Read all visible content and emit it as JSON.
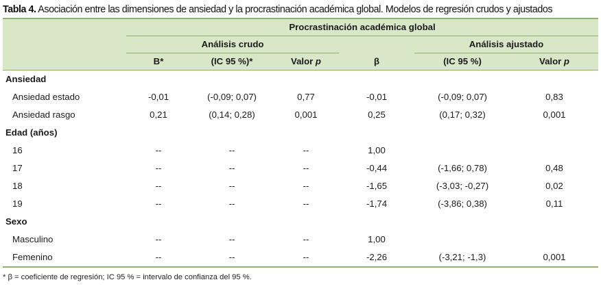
{
  "caption": {
    "label": "Tabla 4.",
    "text": " Asociación entre las dimensiones de ansiedad y la procrastinación académica global. Modelos de regresión crudos y ajustados"
  },
  "header": {
    "top": "Procrastinación académica global",
    "crude": "Análisis crudo",
    "adjusted": "Análisis ajustado",
    "b_crude": "B*",
    "ci_crude": "(IC 95 %)*",
    "p_crude_prefix": "Valor ",
    "p_crude_italic": "p",
    "b_adj": "β",
    "ci_adj": "(IC 95 %)",
    "p_adj_prefix": "Valor ",
    "p_adj_italic": "p"
  },
  "rows": [
    {
      "type": "section",
      "label": "Ansiedad"
    },
    {
      "type": "data",
      "label": "Ansiedad estado",
      "cells": [
        "-0,01",
        "(-0,09; 0,07)",
        "0,77",
        "-0,01",
        "(-0,09; 0,07)",
        "0,83"
      ]
    },
    {
      "type": "data",
      "label": "Ansiedad rasgo",
      "cells": [
        "0,21",
        "(0,14; 0,28)",
        "0,001",
        "0,25",
        "(0,17; 0,32)",
        "0,001"
      ]
    },
    {
      "type": "section",
      "label": "Edad (años)"
    },
    {
      "type": "data",
      "label": "16",
      "cells": [
        "--",
        "--",
        "--",
        "1,00",
        "",
        ""
      ]
    },
    {
      "type": "data",
      "label": "17",
      "cells": [
        "--",
        "--",
        "--",
        "-0,44",
        "(-1,66; 0,78)",
        "0,48"
      ]
    },
    {
      "type": "data",
      "label": "18",
      "cells": [
        "--",
        "--",
        "--",
        "-1,65",
        "(-3,03; -0,27)",
        "0,02"
      ]
    },
    {
      "type": "data",
      "label": "19",
      "cells": [
        "--",
        "--",
        "--",
        "-1,74",
        "(-3,86; 0,38)",
        "0,11"
      ]
    },
    {
      "type": "section",
      "label": "Sexo"
    },
    {
      "type": "data",
      "label": "Masculino",
      "cells": [
        "--",
        "--",
        "--",
        "1,00",
        "",
        ""
      ]
    },
    {
      "type": "data",
      "label": "Femenino",
      "cells": [
        "--",
        "--",
        "--",
        "-2,26",
        "(-3,21; -1,3)",
        "0,001"
      ]
    }
  ],
  "footnote": "* β = coeficiente de regresión; IC 95 % = intervalo de confianza del 95 %."
}
